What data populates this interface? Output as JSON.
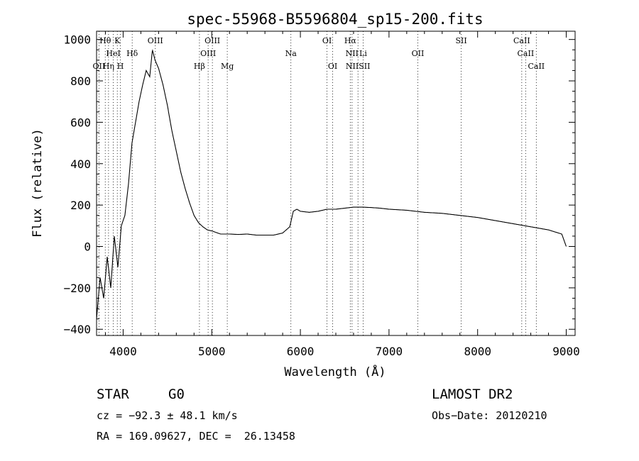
{
  "chart_data": {
    "type": "line",
    "title": "spec-55968-B5596804_sp15-200.fits",
    "xlabel": "Wavelength (Å)",
    "ylabel": "Flux (relative)",
    "xlim": [
      3700,
      9100
    ],
    "ylim": [
      -430,
      1040
    ],
    "xticks": [
      4000,
      5000,
      6000,
      7000,
      8000,
      9000
    ],
    "yticks": [
      -400,
      -200,
      0,
      200,
      400,
      600,
      800,
      1000
    ],
    "xtick_labels": [
      "4000",
      "5000",
      "6000",
      "7000",
      "8000",
      "9000"
    ],
    "ytick_labels": [
      "−400",
      "−200",
      "0",
      "200",
      "400",
      "600",
      "800",
      "1000"
    ],
    "grid": false,
    "series": [
      {
        "x": [
          3700,
          3740,
          3780,
          3820,
          3860,
          3900,
          3940,
          3980,
          4020,
          4060,
          4100,
          4140,
          4180,
          4220,
          4260,
          4300,
          4330,
          4360,
          4400,
          4450,
          4500,
          4550,
          4600,
          4650,
          4700,
          4750,
          4800,
          4850,
          4900,
          4950,
          5000,
          5100,
          5200,
          5300,
          5400,
          5500,
          5600,
          5700,
          5800,
          5880,
          5920,
          5960,
          6000,
          6100,
          6200,
          6300,
          6400,
          6500,
          6600,
          6700,
          6800,
          6900,
          7000,
          7200,
          7400,
          7600,
          7800,
          8000,
          8200,
          8400,
          8600,
          8800,
          8950,
          9000
        ],
        "y": [
          -350,
          -150,
          -250,
          -50,
          -200,
          50,
          -100,
          100,
          150,
          300,
          500,
          600,
          700,
          780,
          850,
          820,
          950,
          900,
          860,
          780,
          680,
          560,
          460,
          360,
          280,
          210,
          150,
          115,
          95,
          80,
          75,
          60,
          60,
          58,
          60,
          55,
          55,
          55,
          65,
          95,
          170,
          180,
          170,
          165,
          170,
          180,
          180,
          185,
          190,
          190,
          188,
          185,
          180,
          175,
          165,
          160,
          150,
          140,
          125,
          110,
          95,
          80,
          60,
          0
        ]
      }
    ],
    "annotations": [
      {
        "text": "Hθ",
        "x": 3798,
        "row": 0
      },
      {
        "text": "K",
        "x": 3934,
        "row": 0
      },
      {
        "text": "HeI",
        "x": 3889,
        "row": 1
      },
      {
        "text": "Hδ",
        "x": 4102,
        "row": 1
      },
      {
        "text": "OII",
        "x": 3727,
        "row": 2
      },
      {
        "text": "Hη",
        "x": 3835,
        "row": 2
      },
      {
        "text": "H",
        "x": 3969,
        "row": 2
      },
      {
        "text": "OIII",
        "x": 4363,
        "row": 0
      },
      {
        "text": "OIII",
        "x": 5007,
        "row": 0
      },
      {
        "text": "OIII",
        "x": 4959,
        "row": 1
      },
      {
        "text": "Hβ",
        "x": 4861,
        "row": 2
      },
      {
        "text": "Mg",
        "x": 5175,
        "row": 2
      },
      {
        "text": "Na",
        "x": 5893,
        "row": 1
      },
      {
        "text": "OI",
        "x": 6300,
        "row": 0
      },
      {
        "text": "OI",
        "x": 6364,
        "row": 2
      },
      {
        "text": "Hα",
        "x": 6563,
        "row": 0
      },
      {
        "text": "NII",
        "x": 6583,
        "row": 1
      },
      {
        "text": "Li",
        "x": 6708,
        "row": 1
      },
      {
        "text": "NIISII",
        "x": 6650,
        "row": 2
      },
      {
        "text": "OII",
        "x": 7325,
        "row": 1
      },
      {
        "text": "SII",
        "x": 7815,
        "row": 0
      },
      {
        "text": "CaII",
        "x": 8498,
        "row": 0
      },
      {
        "text": "CaII",
        "x": 8542,
        "row": 1
      },
      {
        "text": "CaII",
        "x": 8662,
        "row": 2
      }
    ]
  },
  "footer": {
    "object_class": "STAR",
    "subclass": "G0",
    "survey": "LAMOST DR2",
    "redshift": "cz = −92.3 ± 48.1 km/s",
    "obs_date": "Obs−Date: 20120210",
    "coords": "RA = 169.09627, DEC =  26.13458"
  }
}
